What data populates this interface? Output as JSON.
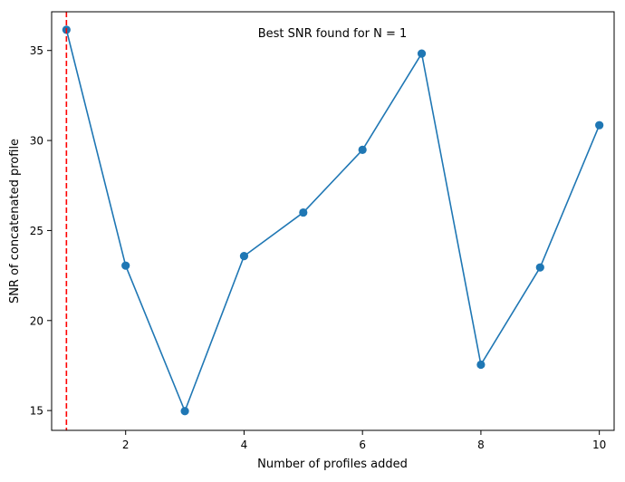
{
  "chart_data": {
    "type": "line",
    "title": "",
    "xlabel": "Number of profiles added",
    "ylabel": "SNR of concatenated profile",
    "x": [
      1,
      2,
      3,
      4,
      5,
      6,
      7,
      8,
      9,
      10
    ],
    "series": [
      {
        "values": [
          36.15,
          23.05,
          14.97,
          23.58,
          26.0,
          29.48,
          34.83,
          17.55,
          22.95,
          30.85
        ],
        "color": "#1f77b4",
        "marker": "circle"
      }
    ],
    "xlim": [
      0.75,
      10.25
    ],
    "ylim": [
      13.9,
      37.15
    ],
    "xticks": [
      2,
      4,
      6,
      8,
      10
    ],
    "yticks": [
      15,
      20,
      25,
      30,
      35
    ],
    "grid": false,
    "legend": "none",
    "annotations": [
      {
        "text": "Best SNR found for N = 1",
        "placement": "top-center"
      }
    ],
    "reference_line": {
      "x": 1,
      "color": "#ff0000",
      "style": "dashed"
    }
  }
}
